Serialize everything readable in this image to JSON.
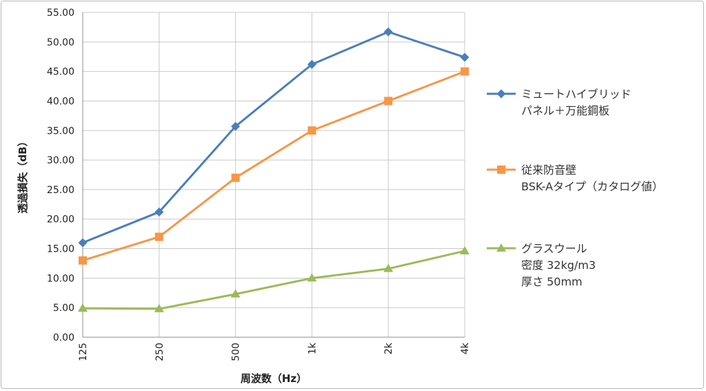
{
  "chart_data": {
    "type": "line",
    "xlabel": "周波数（Hz）",
    "ylabel": "透過損失（dB）",
    "categories": [
      "125",
      "250",
      "500",
      "1k",
      "2k",
      "4k"
    ],
    "ylim": [
      0,
      55
    ],
    "yticks": [
      "0.00",
      "5.00",
      "10.00",
      "15.00",
      "20.00",
      "25.00",
      "30.00",
      "35.00",
      "40.00",
      "45.00",
      "50.00",
      "55.00"
    ],
    "grid": true,
    "legend_position": "right",
    "series": [
      {
        "name_lines": [
          "ミュートハイブリッド",
          "パネル＋万能鋼板"
        ],
        "color": "#4a7ebb",
        "marker": "diamond",
        "values": [
          16.0,
          21.2,
          35.7,
          46.2,
          51.7,
          47.4
        ]
      },
      {
        "name_lines": [
          "従来防音壁",
          "BSK-Aタイプ（カタログ値）"
        ],
        "color": "#f79646",
        "marker": "square",
        "values": [
          13.0,
          17.0,
          27.0,
          35.0,
          40.0,
          45.0
        ]
      },
      {
        "name_lines": [
          "グラスウール",
          "密度 32kg/m3",
          "厚さ 50mm"
        ],
        "color": "#9bbb59",
        "marker": "triangle",
        "values": [
          4.9,
          4.8,
          7.3,
          10.0,
          11.6,
          14.6
        ]
      }
    ]
  }
}
